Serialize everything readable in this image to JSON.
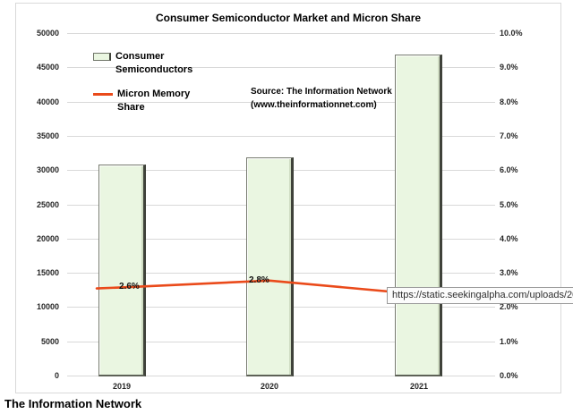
{
  "caption": "The Information Network",
  "overlay_tooltip": {
    "text": "https://static.seekingalpha.com/uploads/20"
  },
  "colors": {
    "bar_fill": "#eaf6e1",
    "bar_border": "#6f7568",
    "line": "#ea4a1a",
    "grid": "#d9d9d9",
    "chart_border": "#d9d9d9"
  },
  "chart_data": {
    "type": "bar",
    "title": "Consumer Semiconductor Market and Micron Share",
    "categories": [
      "2019",
      "2020",
      "2021"
    ],
    "series": [
      {
        "name": "Consumer Semiconductors",
        "chart_type": "bar",
        "axis": "left",
        "values": [
          31000,
          32000,
          47000
        ]
      },
      {
        "name": "Micron Memory Share",
        "chart_type": "line",
        "axis": "right",
        "values": [
          2.6,
          2.8,
          2.4
        ],
        "data_labels": [
          "2.6%",
          "2.8%",
          ""
        ]
      }
    ],
    "left_axis": {
      "min": 0,
      "max": 50000,
      "step": 5000,
      "tick_labels": [
        "0",
        "5000",
        "10000",
        "15000",
        "20000",
        "25000",
        "30000",
        "35000",
        "40000",
        "45000",
        "50000"
      ]
    },
    "right_axis": {
      "min": 0,
      "max": 10,
      "step": 1,
      "tick_labels": [
        "0.0%",
        "1.0%",
        "2.0%",
        "3.0%",
        "4.0%",
        "5.0%",
        "6.0%",
        "7.0%",
        "8.0%",
        "9.0%",
        "10.0%"
      ]
    },
    "grid": true,
    "legend_position": "inside-top-left",
    "source_note_line1": "Source: The Information Network",
    "source_note_line2": "(www.theinformationnet.com)"
  }
}
